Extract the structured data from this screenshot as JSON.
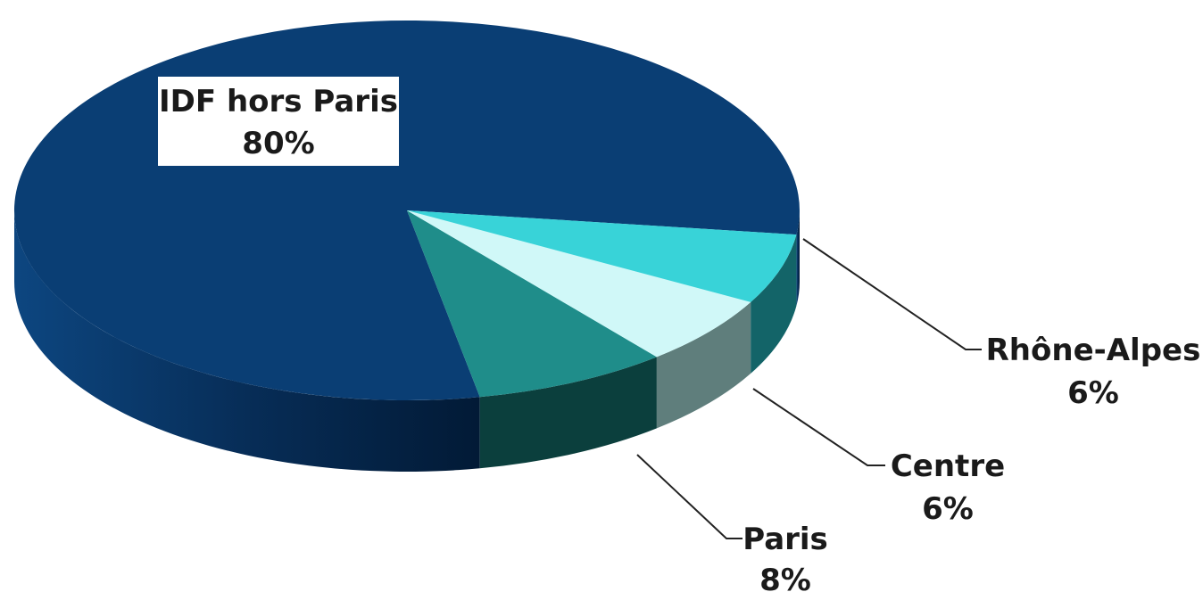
{
  "chart_data": {
    "type": "pie",
    "style": "3d",
    "slices": [
      {
        "label": "IDF hors Paris",
        "value": 80,
        "value_label": "80%",
        "color": "#0a3e74",
        "side_color": "#07305a",
        "label_box": true
      },
      {
        "label": "Paris",
        "value": 8,
        "value_label": "8%",
        "color": "#1f8d8a",
        "side_color": "#0b3f3d"
      },
      {
        "label": "Centre",
        "value": 6,
        "value_label": "6%",
        "color": "#d0f8f8",
        "side_color": "#5f7e7c"
      },
      {
        "label": "Rhône-Alpes",
        "value": 6,
        "value_label": "6%",
        "color": "#38d3d8",
        "side_color": "#136468"
      }
    ]
  }
}
